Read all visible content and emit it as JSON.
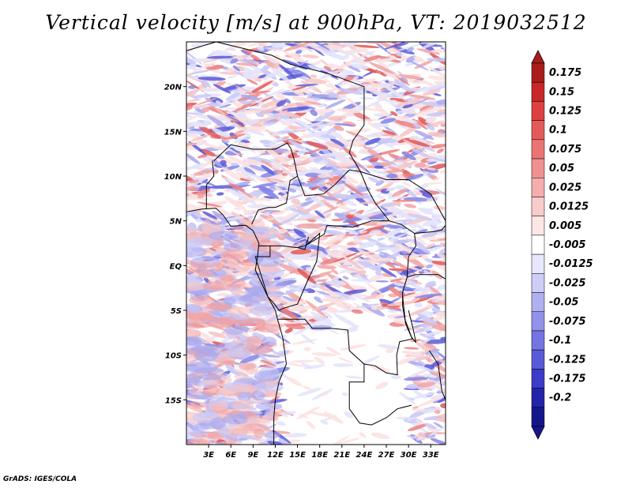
{
  "title": "Vertical velocity [m/s] at 900hPa, VT: 2019032512",
  "footer": "GrADS: IGES/COLA",
  "lon_labels": [
    "3E",
    "6E",
    "9E",
    "12E",
    "15E",
    "18E",
    "21E",
    "24E",
    "27E",
    "30E",
    "33E"
  ],
  "lat_labels": [
    "20N",
    "15N",
    "10N",
    "5N",
    "EQ",
    "5S",
    "10S",
    "15S"
  ],
  "colorbar": {
    "labels": [
      "0.175",
      "0.15",
      "0.125",
      "0.1",
      "0.075",
      "0.05",
      "0.025",
      "0.0125",
      "0.005",
      "-0.005",
      "-0.0125",
      "-0.025",
      "-0.05",
      "-0.075",
      "-0.1",
      "-0.125",
      "-0.175",
      "-0.2"
    ],
    "colors": [
      "#a81c1c",
      "#c82828",
      "#dc4040",
      "#e45a5a",
      "#ea7474",
      "#f09090",
      "#f5adad",
      "#f9cccc",
      "#fce6e6",
      "#ffffff",
      "#e6e6fc",
      "#cdcdf7",
      "#b0b0f1",
      "#9292ea",
      "#7474e2",
      "#5a5ad8",
      "#3c3cc8",
      "#2424a8",
      "#16168c"
    ],
    "top_color": "#a81c1c",
    "bottom_color": "#16168c"
  },
  "map": {
    "lon_range": [
      0,
      35
    ],
    "lat_range": [
      -20,
      25
    ],
    "colors": {
      "red": "#e05050",
      "blue": "#5050e0",
      "border": "#000000"
    }
  }
}
